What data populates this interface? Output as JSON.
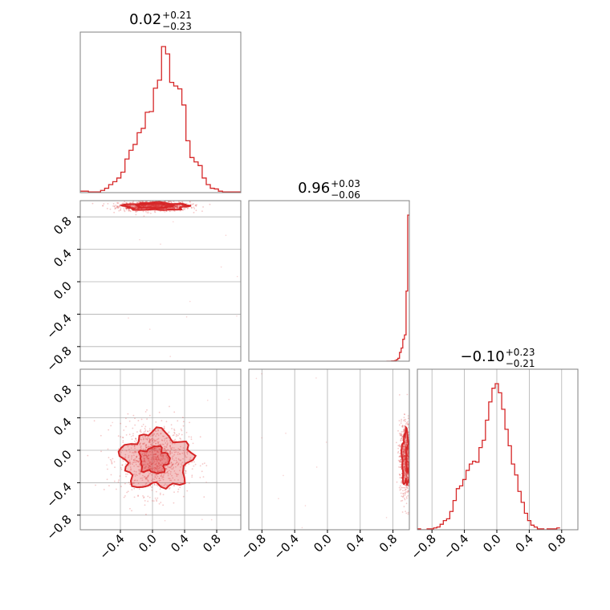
{
  "figure": {
    "colors": {
      "line": "#d62728",
      "fill": "#d62728",
      "grid": "#b0b0b0",
      "frame": "#808080"
    }
  },
  "chart_data": [
    {
      "panel": "hist-p1",
      "type": "histogram",
      "title": {
        "main": "0.02",
        "sup": "+0.21",
        "sub": "−0.23"
      },
      "xlim": [
        -0.66,
        0.92
      ],
      "grid": true,
      "bins": {
        "edges_start": -0.66,
        "edge_step": 0.04,
        "counts": [
          2,
          2,
          1,
          1,
          1,
          3,
          6,
          11,
          15,
          20,
          28,
          46,
          58,
          66,
          82,
          88,
          110,
          111,
          143,
          154,
          200,
          190,
          151,
          146,
          142,
          120,
          71,
          48,
          42,
          37,
          20,
          11,
          6,
          5,
          2,
          1,
          1,
          1,
          1,
          1
        ]
      },
      "xticks": [],
      "yticks": []
    },
    {
      "panel": "hist-p2",
      "type": "histogram",
      "title": {
        "main": "0.96",
        "sup": "+0.03",
        "sub": "−0.06"
      },
      "xlim": [
        -0.96,
        1.0
      ],
      "grid": true,
      "bins": {
        "edges_start": 0.72,
        "edge_step": 0.02,
        "counts": [
          0,
          0,
          0,
          1,
          2,
          4,
          10,
          20,
          60,
          90,
          150,
          180,
          480,
          1000
        ]
      },
      "xticks": [],
      "yticks": []
    },
    {
      "panel": "hist-p3",
      "type": "histogram",
      "title": {
        "main": "−0.10",
        "sup": "+0.23",
        "sub": "−0.21"
      },
      "xlim": [
        -0.98,
        1.0
      ],
      "grid": true,
      "bins": {
        "edges_start": -0.98,
        "edge_step": 0.04,
        "counts": [
          1,
          0,
          0,
          1,
          1,
          2,
          3,
          6,
          10,
          12,
          20,
          32,
          45,
          48,
          55,
          65,
          72,
          75,
          74,
          90,
          98,
          120,
          140,
          155,
          160,
          150,
          132,
          110,
          92,
          72,
          60,
          42,
          30,
          18,
          10,
          5,
          3,
          1,
          1,
          0,
          1,
          1,
          1,
          2
        ]
      },
      "xticks": [
        "−0.8",
        "−0.4",
        "0.0",
        "0.4",
        "0.8"
      ],
      "xtick_values": [
        -0.8,
        -0.4,
        0.0,
        0.4,
        0.8
      ],
      "yticks": []
    },
    {
      "panel": "scatter-p1-p2",
      "type": "scatter",
      "description_level": "2D density contours",
      "xlim": [
        -0.9,
        1.1
      ],
      "ylim": [
        -0.98,
        1.0
      ],
      "grid": true,
      "yticks": [
        "−0.8",
        "−0.4",
        "0.0",
        "0.4",
        "0.8"
      ],
      "ytick_values": [
        -0.8,
        -0.4,
        0.0,
        0.4,
        0.8
      ],
      "xticks": [],
      "cloud": {
        "center_x": 0.02,
        "center_y": 0.93,
        "spread_x": 0.22,
        "spread_y": 0.03
      },
      "contours": [
        {
          "level": 0.39,
          "cx": 0.02,
          "cy": 0.935,
          "rx": 0.22,
          "ry": 0.025
        },
        {
          "level": 0.86,
          "cx": 0.04,
          "cy": 0.93,
          "rx": 0.38,
          "ry": 0.045
        }
      ]
    },
    {
      "panel": "scatter-p1-p3",
      "type": "scatter",
      "xlim": [
        -0.9,
        1.1
      ],
      "ylim": [
        -0.98,
        1.0
      ],
      "grid": true,
      "yticks": [
        "−0.8",
        "−0.4",
        "0.0",
        "0.4",
        "0.8"
      ],
      "ytick_values": [
        -0.8,
        -0.4,
        0.0,
        0.4,
        0.8
      ],
      "xticks": [
        "−0.4",
        "0.0",
        "0.4",
        "0.8"
      ],
      "xtick_values": [
        -0.4,
        0.0,
        0.4,
        0.8
      ],
      "cloud": {
        "center_x": 0.02,
        "center_y": -0.1,
        "spread_x": 0.22,
        "spread_y": 0.22
      },
      "contours": [
        {
          "level": 0.39,
          "cx": 0.02,
          "cy": -0.12,
          "rx": 0.18,
          "ry": 0.16
        },
        {
          "level": 0.86,
          "cx": 0.05,
          "cy": -0.12,
          "rx": 0.42,
          "ry": 0.34
        }
      ]
    },
    {
      "panel": "scatter-p2-p3",
      "type": "scatter",
      "xlim": [
        -0.96,
        1.0
      ],
      "ylim": [
        -0.98,
        1.0
      ],
      "grid": true,
      "yticks": [],
      "xticks": [
        "−0.8",
        "−0.4",
        "0.0",
        "0.4",
        "0.8"
      ],
      "xtick_values": [
        -0.8,
        -0.4,
        0.0,
        0.4,
        0.8
      ],
      "cloud": {
        "center_x": 0.96,
        "center_y": -0.1,
        "spread_x": 0.04,
        "spread_y": 0.22
      },
      "contours": [
        {
          "level": 0.39,
          "cx": 0.99,
          "cy": -0.1,
          "rx": 0.03,
          "ry": 0.18
        },
        {
          "level": 0.86,
          "cx": 0.96,
          "cy": -0.1,
          "rx": 0.05,
          "ry": 0.32
        }
      ]
    }
  ]
}
